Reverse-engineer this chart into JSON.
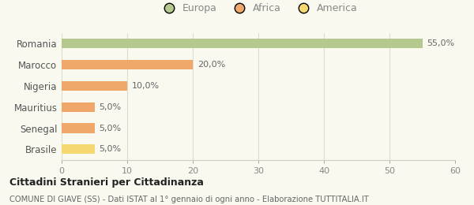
{
  "categories": [
    "Brasile",
    "Senegal",
    "Mauritius",
    "Nigeria",
    "Marocco",
    "Romania"
  ],
  "values": [
    5.0,
    5.0,
    5.0,
    10.0,
    20.0,
    55.0
  ],
  "colors": [
    "#f5d970",
    "#f0a86a",
    "#f0a86a",
    "#f0a86a",
    "#f0a86a",
    "#b5c98e"
  ],
  "labels": [
    "5,0%",
    "5,0%",
    "5,0%",
    "10,0%",
    "20,0%",
    "55,0%"
  ],
  "xlim": [
    0,
    60
  ],
  "xticks": [
    0,
    10,
    20,
    30,
    40,
    50,
    60
  ],
  "legend": [
    {
      "label": "Europa",
      "color": "#b5c98e"
    },
    {
      "label": "Africa",
      "color": "#f0a86a"
    },
    {
      "label": "America",
      "color": "#f5d970"
    }
  ],
  "title": "Cittadini Stranieri per Cittadinanza",
  "subtitle": "COMUNE DI GIAVE (SS) - Dati ISTAT al 1° gennaio di ogni anno - Elaborazione TUTTITALIA.IT",
  "bg_color": "#f9f9f0",
  "bar_height": 0.45,
  "grid_color": "#ddddcc",
  "label_fontsize": 8,
  "ytick_fontsize": 8.5,
  "xtick_fontsize": 8
}
